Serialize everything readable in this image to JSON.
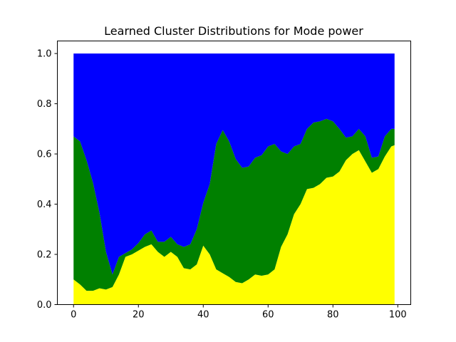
{
  "chart_data": {
    "type": "area",
    "stacked": true,
    "normalized": true,
    "title": "Learned Cluster Distributions for Mode power",
    "xlabel": "",
    "ylabel": "",
    "xlim": [
      -5,
      104
    ],
    "ylim": [
      0,
      1.05
    ],
    "xticks": [
      0,
      20,
      40,
      60,
      80,
      100
    ],
    "yticks": [
      0.0,
      0.2,
      0.4,
      0.6,
      0.8,
      1.0
    ],
    "ytick_labels": [
      "0.0",
      "0.2",
      "0.4",
      "0.6",
      "0.8",
      "1.0"
    ],
    "grid": false,
    "legend": "none",
    "x": [
      0,
      2,
      4,
      6,
      8,
      10,
      12,
      14,
      16,
      18,
      20,
      22,
      24,
      26,
      28,
      30,
      32,
      34,
      36,
      38,
      40,
      42,
      44,
      46,
      48,
      50,
      52,
      54,
      56,
      58,
      60,
      62,
      64,
      66,
      68,
      70,
      72,
      74,
      76,
      78,
      80,
      82,
      84,
      86,
      88,
      90,
      92,
      94,
      96,
      98,
      99
    ],
    "series": [
      {
        "color": "#ffff00",
        "values": [
          0.1,
          0.08,
          0.055,
          0.055,
          0.065,
          0.06,
          0.07,
          0.12,
          0.19,
          0.2,
          0.215,
          0.23,
          0.24,
          0.21,
          0.19,
          0.21,
          0.19,
          0.145,
          0.14,
          0.16,
          0.235,
          0.2,
          0.14,
          0.125,
          0.11,
          0.09,
          0.085,
          0.1,
          0.12,
          0.115,
          0.12,
          0.14,
          0.23,
          0.28,
          0.36,
          0.4,
          0.46,
          0.465,
          0.48,
          0.505,
          0.51,
          0.53,
          0.575,
          0.6,
          0.615,
          0.57,
          0.525,
          0.54,
          0.59,
          0.63,
          0.635
        ]
      },
      {
        "color": "#008000",
        "values": [
          0.57,
          0.57,
          0.52,
          0.43,
          0.3,
          0.15,
          0.05,
          0.07,
          0.015,
          0.02,
          0.03,
          0.05,
          0.055,
          0.04,
          0.06,
          0.06,
          0.05,
          0.085,
          0.1,
          0.14,
          0.17,
          0.28,
          0.5,
          0.57,
          0.54,
          0.49,
          0.46,
          0.45,
          0.465,
          0.48,
          0.51,
          0.5,
          0.38,
          0.32,
          0.27,
          0.24,
          0.24,
          0.26,
          0.25,
          0.235,
          0.22,
          0.17,
          0.09,
          0.07,
          0.085,
          0.1,
          0.06,
          0.05,
          0.08,
          0.07,
          0.065
        ]
      },
      {
        "color": "#0000ff",
        "values": [
          0.33,
          0.35,
          0.425,
          0.515,
          0.635,
          0.79,
          0.88,
          0.81,
          0.795,
          0.78,
          0.755,
          0.72,
          0.705,
          0.75,
          0.75,
          0.73,
          0.76,
          0.77,
          0.76,
          0.7,
          0.595,
          0.52,
          0.36,
          0.305,
          0.35,
          0.42,
          0.455,
          0.45,
          0.415,
          0.405,
          0.37,
          0.36,
          0.39,
          0.4,
          0.37,
          0.36,
          0.3,
          0.275,
          0.27,
          0.26,
          0.27,
          0.3,
          0.335,
          0.33,
          0.3,
          0.33,
          0.415,
          0.41,
          0.33,
          0.3,
          0.3
        ]
      }
    ]
  }
}
